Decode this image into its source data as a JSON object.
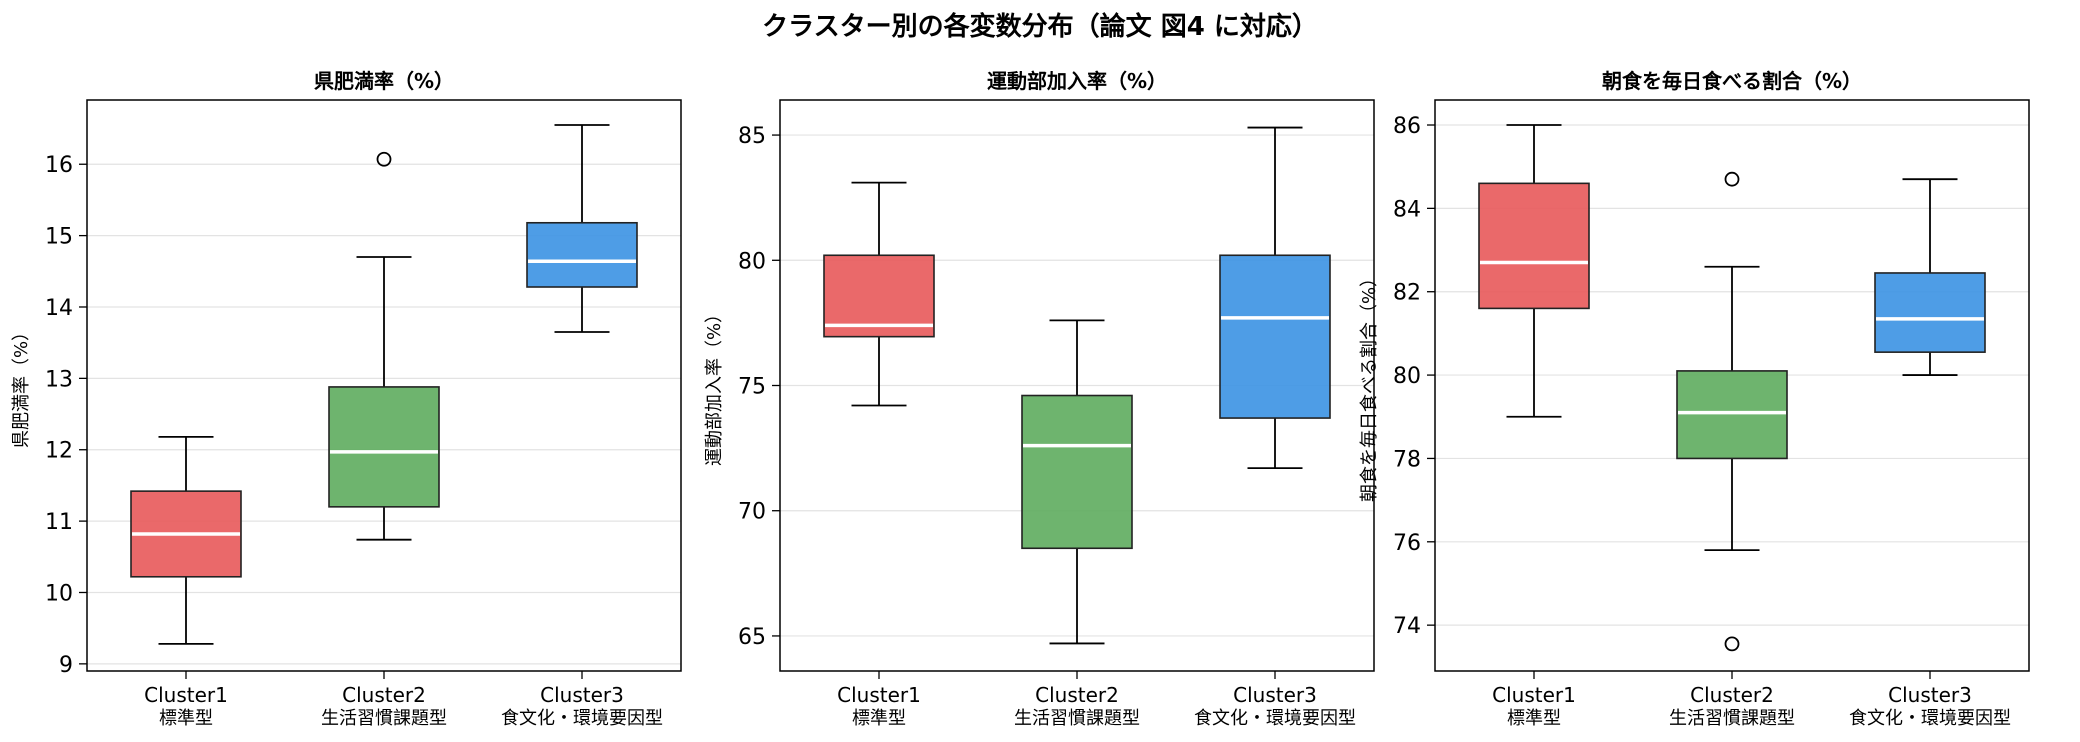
{
  "figure": {
    "title": "クラスター別の各変数分布（論文 図4 に対応）"
  },
  "chart_data": [
    {
      "type": "box",
      "title": "県肥満率（%）",
      "xlabel": "",
      "ylabel": "県肥満率（%）",
      "ylim": [
        8.9,
        16.9
      ],
      "yticks": [
        9,
        10,
        11,
        12,
        13,
        14,
        15,
        16
      ],
      "grid": true,
      "categories": [
        {
          "line1": "Cluster1",
          "line2": "標準型"
        },
        {
          "line1": "Cluster2",
          "line2": "生活習慣課題型"
        },
        {
          "line1": "Cluster3",
          "line2": "食文化・環境要因型"
        }
      ],
      "boxes": [
        {
          "whisker_low": 9.28,
          "q1": 10.22,
          "median": 10.82,
          "q3": 11.42,
          "whisker_high": 12.18,
          "outliers": [],
          "color": "#e8595a"
        },
        {
          "whisker_low": 10.74,
          "q1": 11.2,
          "median": 11.97,
          "q3": 12.88,
          "whisker_high": 14.7,
          "outliers": [
            16.07
          ],
          "color": "#5eac5e"
        },
        {
          "whisker_low": 13.65,
          "q1": 14.28,
          "median": 14.64,
          "q3": 15.18,
          "whisker_high": 16.55,
          "outliers": [],
          "color": "#3b92e3"
        }
      ]
    },
    {
      "type": "box",
      "title": "運動部加入率（%）",
      "xlabel": "",
      "ylabel": "運動部加入率（%）",
      "ylim": [
        63.6,
        86.4
      ],
      "yticks": [
        65,
        70,
        75,
        80,
        85
      ],
      "grid": true,
      "categories": [
        {
          "line1": "Cluster1",
          "line2": "標準型"
        },
        {
          "line1": "Cluster2",
          "line2": "生活習慣課題型"
        },
        {
          "line1": "Cluster3",
          "line2": "食文化・環境要因型"
        }
      ],
      "boxes": [
        {
          "whisker_low": 74.2,
          "q1": 76.95,
          "median": 77.4,
          "q3": 80.2,
          "whisker_high": 83.1,
          "outliers": [],
          "color": "#e8595a"
        },
        {
          "whisker_low": 64.7,
          "q1": 68.5,
          "median": 72.6,
          "q3": 74.6,
          "whisker_high": 77.6,
          "outliers": [],
          "color": "#5eac5e"
        },
        {
          "whisker_low": 71.7,
          "q1": 73.7,
          "median": 77.7,
          "q3": 80.2,
          "whisker_high": 85.3,
          "outliers": [],
          "color": "#3b92e3"
        }
      ]
    },
    {
      "type": "box",
      "title": "朝食を毎日食べる割合（%）",
      "xlabel": "",
      "ylabel": "朝食を毎日食べる割合（%）",
      "ylim": [
        72.9,
        86.6
      ],
      "yticks": [
        74,
        76,
        78,
        80,
        82,
        84,
        86
      ],
      "grid": true,
      "categories": [
        {
          "line1": "Cluster1",
          "line2": "標準型"
        },
        {
          "line1": "Cluster2",
          "line2": "生活習慣課題型"
        },
        {
          "line1": "Cluster3",
          "line2": "食文化・環境要因型"
        }
      ],
      "boxes": [
        {
          "whisker_low": 79.0,
          "q1": 81.6,
          "median": 82.7,
          "q3": 84.6,
          "whisker_high": 86.0,
          "outliers": [],
          "color": "#e8595a"
        },
        {
          "whisker_low": 75.8,
          "q1": 78.0,
          "median": 79.1,
          "q3": 80.1,
          "whisker_high": 82.6,
          "outliers": [
            84.7,
            73.55
          ],
          "color": "#5eac5e"
        },
        {
          "whisker_low": 80.0,
          "q1": 80.55,
          "median": 81.35,
          "q3": 82.45,
          "whisker_high": 84.7,
          "outliers": [],
          "color": "#3b92e3"
        }
      ]
    }
  ]
}
